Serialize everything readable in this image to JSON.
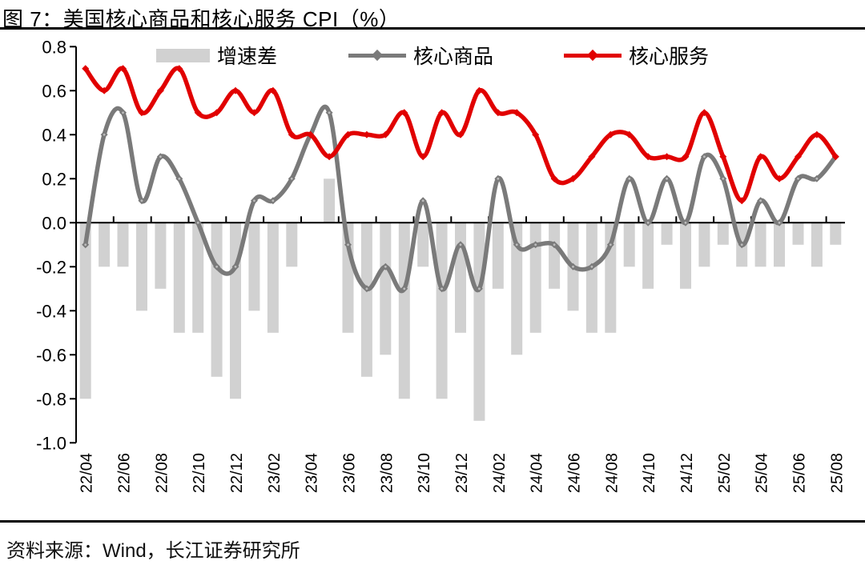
{
  "header": {
    "title": "图 7：美国核心商品和核心服务 CPI（%）"
  },
  "footer": {
    "source": "资料来源：Wind，长江证券研究所"
  },
  "colors": {
    "bar": "#d1d1d1",
    "goods_line": "#7a7a7a",
    "services_line": "#e10000",
    "axis": "#000000"
  },
  "legend": [
    {
      "label": "增速差",
      "type": "bar",
      "color": "#d1d1d1"
    },
    {
      "label": "核心商品",
      "type": "line",
      "color": "#7a7a7a"
    },
    {
      "label": "核心服务",
      "type": "line",
      "color": "#e10000"
    }
  ],
  "chart_data": {
    "type": "bar+line",
    "title": "图 7：美国核心商品和核心服务 CPI（%）",
    "categories": [
      "22/04",
      "22/05",
      "22/06",
      "22/07",
      "22/08",
      "22/09",
      "22/10",
      "22/11",
      "22/12",
      "23/01",
      "23/02",
      "23/03",
      "23/04",
      "23/05",
      "23/06",
      "23/07",
      "23/08",
      "23/09",
      "23/10",
      "23/11",
      "23/12",
      "24/01",
      "24/02",
      "24/03",
      "24/04",
      "24/05",
      "24/06",
      "24/07",
      "24/08",
      "24/09",
      "24/10",
      "24/11",
      "24/12",
      "25/01",
      "25/02",
      "25/03",
      "25/04",
      "25/05",
      "25/06",
      "25/07",
      "25/08"
    ],
    "x_label_every": 2,
    "series": [
      {
        "name": "增速差",
        "type": "bar",
        "color": "#d1d1d1",
        "values": [
          -0.8,
          -0.2,
          -0.2,
          -0.4,
          -0.3,
          -0.5,
          -0.5,
          -0.7,
          -0.8,
          -0.4,
          -0.5,
          -0.2,
          0.0,
          0.2,
          -0.5,
          -0.7,
          -0.6,
          -0.8,
          -0.2,
          -0.8,
          -0.5,
          -0.9,
          -0.3,
          -0.6,
          -0.5,
          -0.3,
          -0.4,
          -0.5,
          -0.5,
          -0.2,
          -0.3,
          -0.1,
          -0.3,
          -0.2,
          -0.1,
          -0.2,
          -0.2,
          -0.2,
          -0.1,
          -0.2,
          -0.1
        ]
      },
      {
        "name": "核心商品",
        "type": "line",
        "color": "#7a7a7a",
        "values": [
          -0.1,
          0.4,
          0.5,
          0.1,
          0.3,
          0.2,
          0.0,
          -0.2,
          -0.2,
          0.1,
          0.1,
          0.2,
          0.4,
          0.5,
          -0.1,
          -0.3,
          -0.2,
          -0.3,
          0.1,
          -0.3,
          -0.1,
          -0.3,
          0.2,
          -0.1,
          -0.1,
          -0.1,
          -0.2,
          -0.2,
          -0.1,
          0.2,
          0.0,
          0.2,
          0.0,
          0.3,
          0.2,
          -0.1,
          0.1,
          0.0,
          0.2,
          0.2,
          0.3
        ]
      },
      {
        "name": "核心服务",
        "type": "line",
        "color": "#e10000",
        "values": [
          0.7,
          0.6,
          0.7,
          0.5,
          0.6,
          0.7,
          0.5,
          0.5,
          0.6,
          0.5,
          0.6,
          0.4,
          0.4,
          0.3,
          0.4,
          0.4,
          0.4,
          0.5,
          0.3,
          0.5,
          0.4,
          0.6,
          0.5,
          0.5,
          0.4,
          0.2,
          0.2,
          0.3,
          0.4,
          0.4,
          0.3,
          0.3,
          0.3,
          0.5,
          0.3,
          0.1,
          0.3,
          0.2,
          0.3,
          0.4,
          0.3
        ]
      }
    ],
    "ylim": [
      -1.0,
      0.8
    ],
    "y_ticks": [
      0.8,
      0.6,
      0.4,
      0.2,
      0.0,
      -0.2,
      -0.4,
      -0.6,
      -0.8,
      -1.0
    ],
    "grid": false,
    "legend_position": "top"
  }
}
